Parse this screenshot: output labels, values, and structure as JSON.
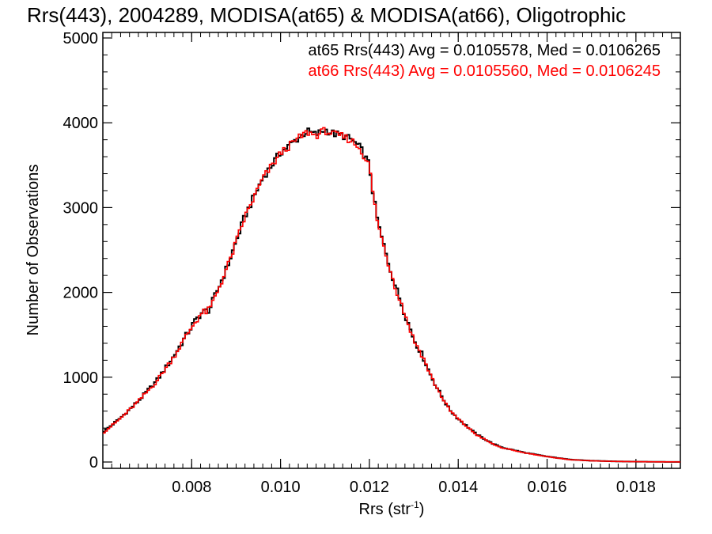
{
  "chart_data": {
    "type": "line",
    "title": "Rrs(443), 2004289, MODISA(at65) & MODISA(at66), Oligotrophic",
    "xlabel": "Rrs (str",
    "xlabel_sup": "-1",
    "xlabel_close": ")",
    "ylabel": "Number of Observations",
    "xlim": [
      0.006,
      0.019
    ],
    "ylim": [
      0,
      5000
    ],
    "xticks": [
      0.008,
      0.01,
      0.012,
      0.014,
      0.016,
      0.018
    ],
    "xtick_labels": [
      "0.008",
      "0.010",
      "0.012",
      "0.014",
      "0.016",
      "0.018"
    ],
    "yticks": [
      0,
      1000,
      2000,
      3000,
      4000,
      5000
    ],
    "ytick_labels": [
      "0",
      "1000",
      "2000",
      "3000",
      "4000",
      "5000"
    ],
    "grid": false,
    "colors": {
      "at65": "#000000",
      "at66": "#ff0000",
      "axes": "#000000"
    },
    "annotations": [
      {
        "text": "at65 Rrs(443) Avg = 0.0105578, Med = 0.0106265",
        "color": "#000000"
      },
      {
        "text": "at66 Rrs(443) Avg = 0.0105560, Med = 0.0106245",
        "color": "#ff0000"
      }
    ],
    "x": [
      0.006,
      0.0064,
      0.0068,
      0.0072,
      0.0076,
      0.008,
      0.0082,
      0.0084,
      0.0088,
      0.0092,
      0.0096,
      0.01,
      0.0104,
      0.0106,
      0.0108,
      0.011,
      0.0112,
      0.0114,
      0.0116,
      0.0118,
      0.012,
      0.0121,
      0.0122,
      0.0124,
      0.0126,
      0.0128,
      0.013,
      0.0132,
      0.0134,
      0.0136,
      0.0138,
      0.014,
      0.0142,
      0.0144,
      0.0146,
      0.0148,
      0.015,
      0.0155,
      0.016,
      0.0165,
      0.017,
      0.0175,
      0.018,
      0.0185,
      0.019
    ],
    "series": [
      {
        "name": "at65",
        "values": [
          350,
          520,
          720,
          950,
          1250,
          1600,
          1750,
          1800,
          2300,
          2900,
          3350,
          3650,
          3820,
          3900,
          3860,
          3920,
          3870,
          3850,
          3800,
          3700,
          3500,
          3100,
          2800,
          2400,
          2050,
          1750,
          1450,
          1250,
          1000,
          800,
          620,
          510,
          420,
          330,
          270,
          210,
          170,
          110,
          65,
          30,
          15,
          8,
          4,
          2,
          1
        ]
      },
      {
        "name": "at66",
        "values": [
          340,
          515,
          715,
          945,
          1245,
          1590,
          1745,
          1790,
          2290,
          2890,
          3340,
          3640,
          3815,
          3890,
          3850,
          3910,
          3860,
          3840,
          3790,
          3690,
          3490,
          3090,
          2790,
          2390,
          2040,
          1745,
          1440,
          1245,
          995,
          795,
          615,
          505,
          415,
          325,
          265,
          205,
          165,
          108,
          63,
          28,
          14,
          7,
          4,
          2,
          1
        ]
      }
    ]
  }
}
